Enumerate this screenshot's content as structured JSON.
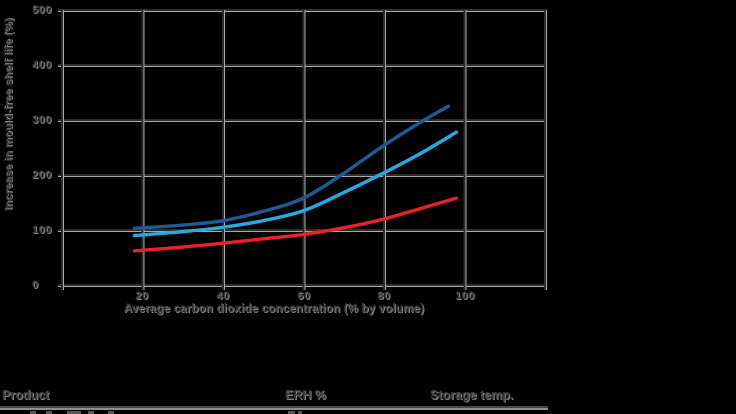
{
  "chart": {
    "y_axis_title": "Increase in mould-free shelf life (%)",
    "x_axis_title": "Average carbon dioxide concentration (% by volume)",
    "y_ticks": [
      "500",
      "400",
      "300",
      "200",
      "100",
      "0"
    ],
    "x_ticks": [
      "20",
      "40",
      "60",
      "80",
      "100"
    ]
  },
  "chart_data": {
    "type": "line",
    "title": "",
    "xlabel": "Average carbon dioxide concentration (% by volume)",
    "ylabel": "Increase in mould-free shelf life (%)",
    "xlim": [
      0,
      120
    ],
    "ylim": [
      0,
      500
    ],
    "x_tick_values": [
      0,
      20,
      40,
      60,
      80,
      100,
      120
    ],
    "y_tick_values": [
      0,
      100,
      200,
      300,
      400,
      500
    ],
    "grid": true,
    "legend": "none (series identified by table below: Product / ERH % / Storage temp.)",
    "series": [
      {
        "name": "dark-blue-curve",
        "color": "#1e5a96",
        "points": [
          [
            18,
            103
          ],
          [
            30,
            109
          ],
          [
            40,
            117
          ],
          [
            50,
            134
          ],
          [
            60,
            158
          ],
          [
            70,
            203
          ],
          [
            80,
            254
          ],
          [
            90,
            300
          ],
          [
            96,
            325
          ]
        ]
      },
      {
        "name": "light-blue-curve",
        "color": "#29a9e1",
        "points": [
          [
            18,
            90
          ],
          [
            30,
            97
          ],
          [
            40,
            105
          ],
          [
            50,
            117
          ],
          [
            60,
            135
          ],
          [
            70,
            168
          ],
          [
            80,
            204
          ],
          [
            90,
            243
          ],
          [
            98,
            278
          ]
        ]
      },
      {
        "name": "red-curve",
        "color": "#e92129",
        "points": [
          [
            18,
            62
          ],
          [
            30,
            69
          ],
          [
            40,
            76
          ],
          [
            50,
            84
          ],
          [
            60,
            92
          ],
          [
            70,
            104
          ],
          [
            80,
            120
          ],
          [
            90,
            141
          ],
          [
            98,
            158
          ]
        ]
      }
    ]
  },
  "table": {
    "headers": [
      {
        "label": "Product"
      },
      {
        "label": "ERH %"
      },
      {
        "label": "Storage temp."
      }
    ]
  },
  "colors": {
    "background": "#000000",
    "grid_dark": "#2f2c2d",
    "grid_light": "#a9a9a9",
    "text": "#3f3b3c",
    "text_halo": "#a2a2a2"
  }
}
